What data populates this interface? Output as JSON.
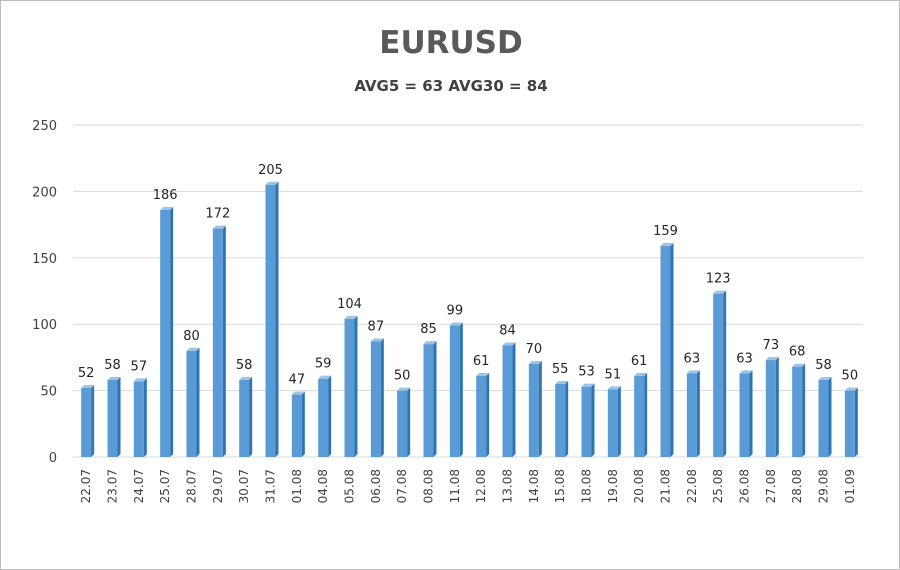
{
  "chart_data": {
    "type": "bar",
    "title": "EURUSD",
    "subtitle": "AVG5 = 63 AVG30 = 84",
    "categories": [
      "22.07",
      "23.07",
      "24.07",
      "25.07",
      "28.07",
      "29.07",
      "30.07",
      "31.07",
      "01.08",
      "04.08",
      "05.08",
      "06.08",
      "07.08",
      "08.08",
      "11.08",
      "12.08",
      "13.08",
      "14.08",
      "15.08",
      "18.08",
      "19.08",
      "20.08",
      "21.08",
      "22.08",
      "25.08",
      "26.08",
      "27.08",
      "28.08",
      "29.08",
      "01.09"
    ],
    "values": [
      52,
      58,
      57,
      186,
      80,
      172,
      58,
      205,
      47,
      59,
      104,
      87,
      50,
      85,
      99,
      61,
      84,
      70,
      55,
      53,
      51,
      61,
      159,
      63,
      123,
      63,
      73,
      68,
      58,
      50
    ],
    "ylim": [
      0,
      250
    ],
    "yticks": [
      0,
      50,
      100,
      150,
      200,
      250
    ],
    "grid": true,
    "data_labels": true,
    "legend": "none",
    "colors": {
      "bar_front": "#5b9bd5",
      "bar_side": "#2e75b6",
      "bar_top": "#9dc3e6",
      "grid": "#d9d9d9"
    }
  }
}
